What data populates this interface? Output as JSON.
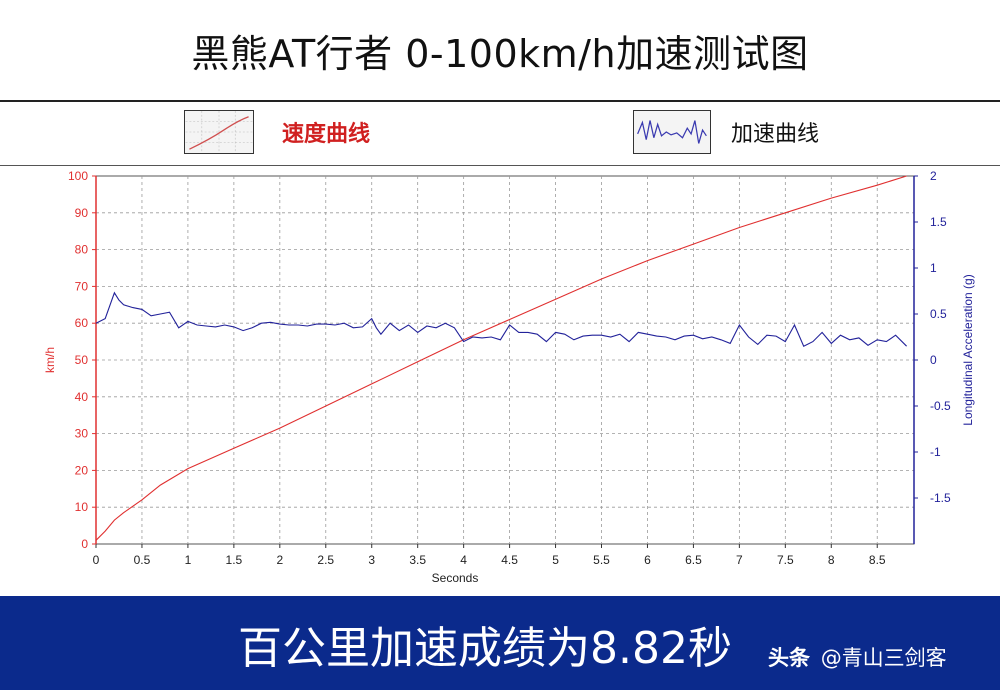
{
  "header": {
    "title": "黑熊AT行者 0-100km/h加速测试图"
  },
  "legend": {
    "speed_label": "速度曲线",
    "accel_label": "加速曲线",
    "speed_icon": "speed-curve-thumbnail",
    "accel_icon": "accel-curve-thumbnail"
  },
  "footer": {
    "result_text": "百公里加速成绩为8.82秒",
    "watermark_source": "头条",
    "watermark_account": "@青山三剑客"
  },
  "colors": {
    "speed": "#e03030",
    "accel": "#22229a",
    "footer_bg": "#0b2a8c",
    "grid": "#9a9a9a"
  },
  "chart_data": {
    "type": "line",
    "title": "",
    "xlabel": "Seconds",
    "ylabel_left": "km/h",
    "ylabel_right": "Longitudinal Acceleration (g)",
    "xlim": [
      0,
      8.9
    ],
    "ylim_left": [
      0,
      100
    ],
    "ylim_right": [
      -2,
      2
    ],
    "grid": true,
    "x_ticks": [
      "0",
      "0.5",
      "1",
      "1.5",
      "2",
      "2.5",
      "3",
      "3.5",
      "4",
      "4.5",
      "5",
      "5.5",
      "6",
      "6.5",
      "7",
      "7.5",
      "8",
      "8.5"
    ],
    "y_left_ticks": [
      "0",
      "10",
      "20",
      "30",
      "40",
      "50",
      "60",
      "70",
      "80",
      "90",
      "100"
    ],
    "y_right_ticks": [
      "-1.5",
      "-1",
      "-0.5",
      "0",
      "0.5",
      "1",
      "1.5",
      "2"
    ],
    "series": [
      {
        "axis": "left",
        "x": [
          0,
          0.1,
          0.2,
          0.3,
          0.5,
          0.7,
          1.0,
          1.5,
          2.0,
          2.5,
          3.0,
          3.5,
          4.0,
          4.5,
          5.0,
          5.5,
          6.0,
          6.5,
          7.0,
          7.5,
          8.0,
          8.5,
          8.82
        ],
        "y": [
          1,
          3.5,
          6.5,
          8.5,
          12,
          16,
          20.5,
          26,
          31.5,
          37.5,
          43.5,
          49.5,
          55.5,
          61,
          66.5,
          72,
          77,
          81.5,
          86,
          90,
          94,
          97.5,
          100
        ]
      },
      {
        "axis": "right",
        "x": [
          0,
          0.1,
          0.2,
          0.25,
          0.3,
          0.4,
          0.5,
          0.6,
          0.7,
          0.8,
          0.9,
          1.0,
          1.1,
          1.2,
          1.3,
          1.4,
          1.5,
          1.6,
          1.7,
          1.8,
          1.9,
          2.0,
          2.1,
          2.2,
          2.3,
          2.4,
          2.5,
          2.6,
          2.7,
          2.8,
          2.9,
          3.0,
          3.05,
          3.1,
          3.2,
          3.3,
          3.4,
          3.5,
          3.6,
          3.7,
          3.8,
          3.9,
          4.0,
          4.1,
          4.2,
          4.3,
          4.4,
          4.5,
          4.6,
          4.7,
          4.8,
          4.9,
          5.0,
          5.1,
          5.2,
          5.3,
          5.4,
          5.5,
          5.6,
          5.7,
          5.8,
          5.9,
          6.0,
          6.1,
          6.2,
          6.3,
          6.4,
          6.5,
          6.6,
          6.7,
          6.8,
          6.9,
          7.0,
          7.1,
          7.2,
          7.3,
          7.4,
          7.5,
          7.6,
          7.7,
          7.8,
          7.9,
          8.0,
          8.1,
          8.2,
          8.3,
          8.4,
          8.5,
          8.6,
          8.7,
          8.82
        ],
        "y": [
          0.4,
          0.45,
          0.73,
          0.65,
          0.6,
          0.57,
          0.55,
          0.48,
          0.5,
          0.52,
          0.35,
          0.42,
          0.38,
          0.37,
          0.36,
          0.38,
          0.36,
          0.32,
          0.35,
          0.4,
          0.41,
          0.39,
          0.38,
          0.38,
          0.37,
          0.39,
          0.39,
          0.38,
          0.4,
          0.35,
          0.36,
          0.45,
          0.35,
          0.28,
          0.4,
          0.32,
          0.38,
          0.3,
          0.37,
          0.35,
          0.4,
          0.35,
          0.2,
          0.25,
          0.24,
          0.25,
          0.22,
          0.38,
          0.3,
          0.3,
          0.28,
          0.2,
          0.3,
          0.28,
          0.22,
          0.26,
          0.27,
          0.27,
          0.25,
          0.28,
          0.2,
          0.3,
          0.28,
          0.26,
          0.25,
          0.22,
          0.26,
          0.27,
          0.23,
          0.25,
          0.22,
          0.18,
          0.38,
          0.25,
          0.17,
          0.27,
          0.26,
          0.2,
          0.38,
          0.15,
          0.2,
          0.3,
          0.18,
          0.27,
          0.22,
          0.24,
          0.16,
          0.22,
          0.2,
          0.27,
          0.15
        ]
      }
    ]
  }
}
